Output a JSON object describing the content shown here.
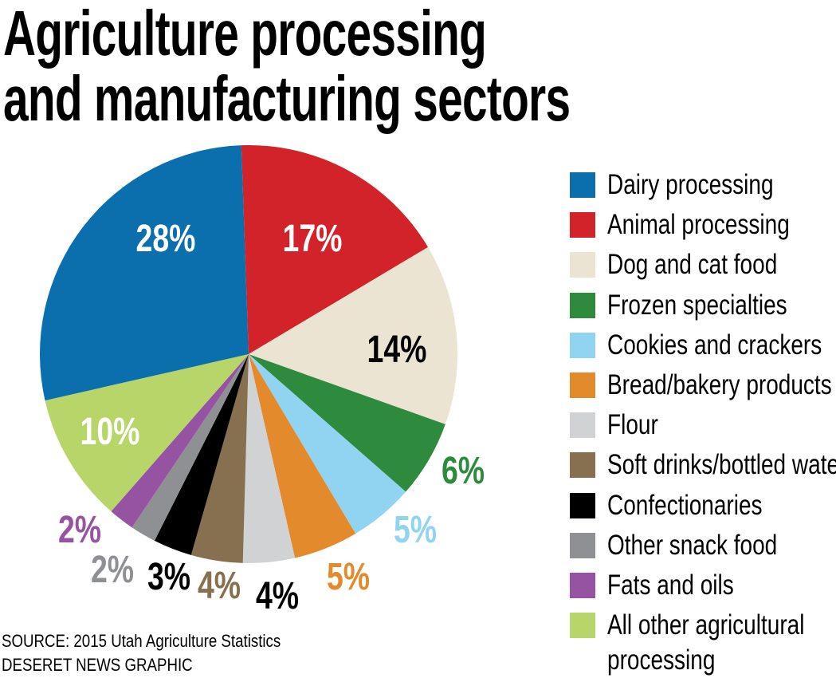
{
  "chart_data": {
    "type": "pie",
    "title": "Agriculture processing and manufacturing sectors",
    "title_lines": [
      "Agriculture processing",
      "and manufacturing sectors"
    ],
    "start": "top, clockwise",
    "slices": [
      {
        "name": "Animal processing",
        "value": 17,
        "label": "17%",
        "color": "#d2232a",
        "label_color": "#ffffff"
      },
      {
        "name": "Dog and cat food",
        "value": 14,
        "label": "14%",
        "color": "#ebe4d3",
        "label_color": "#000000"
      },
      {
        "name": "Frozen specialties",
        "value": 6,
        "label": "6%",
        "color": "#2e8b3e",
        "label_color": "#2e8b3e"
      },
      {
        "name": "Cookies and crackers",
        "value": 5,
        "label": "5%",
        "color": "#91d4f2",
        "label_color": "#91d4f2"
      },
      {
        "name": "Bread/bakery products",
        "value": 5,
        "label": "5%",
        "color": "#e38b2c",
        "label_color": "#e38b2c"
      },
      {
        "name": "Flour",
        "value": 4,
        "label": "4%",
        "color": "#d1d2d4",
        "label_color": "#000000"
      },
      {
        "name": "Soft drinks/bottled water",
        "value": 4,
        "label": "4%",
        "color": "#86704f",
        "label_color": "#86704f"
      },
      {
        "name": "Confectionaries",
        "value": 3,
        "label": "3%",
        "color": "#000000",
        "label_color": "#000000"
      },
      {
        "name": "Other snack food",
        "value": 2,
        "label": "2%",
        "color": "#8e9093",
        "label_color": "#8e9093"
      },
      {
        "name": "Fats and oils",
        "value": 2,
        "label": "2%",
        "color": "#9553a2",
        "label_color": "#9553a2"
      },
      {
        "name": "All other agricultural processing",
        "value": 10,
        "label": "10%",
        "color": "#b8d56a",
        "label_color": "#ffffff"
      },
      {
        "name": "Dairy processing",
        "value": 28,
        "label": "28%",
        "color": "#0b6fad",
        "label_color": "#ffffff"
      }
    ],
    "legend": {
      "placement": "right",
      "entries": [
        {
          "label": "Dairy processing",
          "color": "#0b6fad"
        },
        {
          "label": "Animal processing",
          "color": "#d2232a"
        },
        {
          "label": "Dog and cat food",
          "color": "#ebe4d3"
        },
        {
          "label": "Frozen specialties",
          "color": "#2e8b3e"
        },
        {
          "label": "Cookies and crackers",
          "color": "#91d4f2"
        },
        {
          "label": "Bread/bakery products",
          "color": "#e38b2c"
        },
        {
          "label": "Flour",
          "color": "#d1d2d4"
        },
        {
          "label": "Soft drinks/bottled water",
          "color": "#86704f"
        },
        {
          "label": "Confectionaries",
          "color": "#000000"
        },
        {
          "label": "Other snack food",
          "color": "#8e9093"
        },
        {
          "label": "Fats and oils",
          "color": "#9553a2"
        },
        {
          "label": "All other agricultural",
          "label2": "processing",
          "color": "#b8d56a"
        }
      ]
    }
  },
  "footer": {
    "source": "SOURCE: 2015 Utah Agriculture Statistics",
    "credit": "DESERET NEWS GRAPHIC"
  }
}
